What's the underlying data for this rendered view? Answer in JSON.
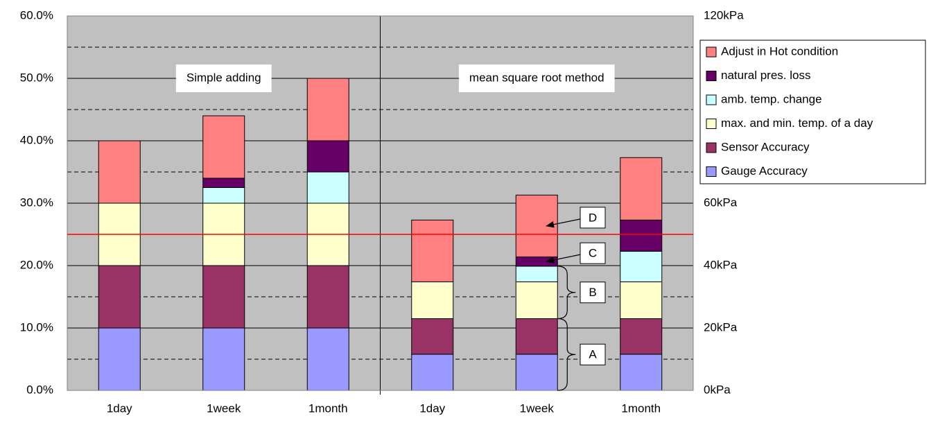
{
  "chart_data": {
    "type": "stacked_bar",
    "categories": [
      "1day",
      "1week",
      "1month",
      "1day",
      "1week",
      "1month"
    ],
    "series": [
      {
        "name": "Gauge Accuracy",
        "color": "#9999ff",
        "values": [
          10,
          10,
          10,
          5.8,
          5.8,
          5.8
        ]
      },
      {
        "name": "Sensor Accuracy",
        "color": "#993366",
        "values": [
          10,
          10,
          10,
          5.7,
          5.7,
          5.7
        ]
      },
      {
        "name": "max. and min. temp. of a day",
        "color": "#ffffcc",
        "values": [
          10,
          10,
          10,
          5.9,
          5.9,
          5.9
        ]
      },
      {
        "name": "amb. temp. change",
        "color": "#ccffff",
        "values": [
          0,
          2.5,
          5,
          0,
          2.5,
          4.9
        ]
      },
      {
        "name": "natural pres. loss",
        "color": "#660066",
        "values": [
          0,
          1.5,
          5,
          0,
          1.5,
          5
        ]
      },
      {
        "name": "Adjust in Hot condition",
        "color": "#ff8080",
        "values": [
          10,
          10,
          10,
          9.9,
          9.9,
          10
        ]
      }
    ],
    "ylim": [
      0,
      60
    ],
    "yticks": [
      {
        "value": 0,
        "label": "0.0%"
      },
      {
        "value": 10,
        "label": "10.0%"
      },
      {
        "value": 20,
        "label": "20.0%"
      },
      {
        "value": 30,
        "label": "30.0%"
      },
      {
        "value": 40,
        "label": "40.0%"
      },
      {
        "value": 50,
        "label": "50.0%"
      },
      {
        "value": 60,
        "label": "60.0%"
      }
    ],
    "y_minor_grid": [
      5,
      15,
      25,
      35,
      45,
      55
    ],
    "y2lim": [
      0,
      120
    ],
    "y2ticks": [
      {
        "value": 0,
        "label": "0kPa"
      },
      {
        "value": 20,
        "label": "20kPa"
      },
      {
        "value": 40,
        "label": "40kPa"
      },
      {
        "value": 60,
        "label": "60kPa"
      },
      {
        "value": 120,
        "label": "120kPa"
      }
    ],
    "reference_line": {
      "value": 25,
      "color": "#ff0000"
    },
    "groups": [
      {
        "label": "Simple adding",
        "size": 3
      },
      {
        "label": "mean square root method",
        "size": 3
      }
    ],
    "annotations": [
      {
        "text": "A",
        "kind": "brace",
        "category": 4,
        "series": [
          0,
          1
        ]
      },
      {
        "text": "B",
        "kind": "brace",
        "category": 4,
        "series": [
          2,
          3
        ]
      },
      {
        "text": "C",
        "kind": "arrow",
        "category": 4,
        "series": [
          4
        ]
      },
      {
        "text": "D",
        "kind": "arrow",
        "category": 4,
        "series": [
          5
        ]
      }
    ],
    "grid": true,
    "legend": "right",
    "plot_background": "#c0c0c0"
  }
}
